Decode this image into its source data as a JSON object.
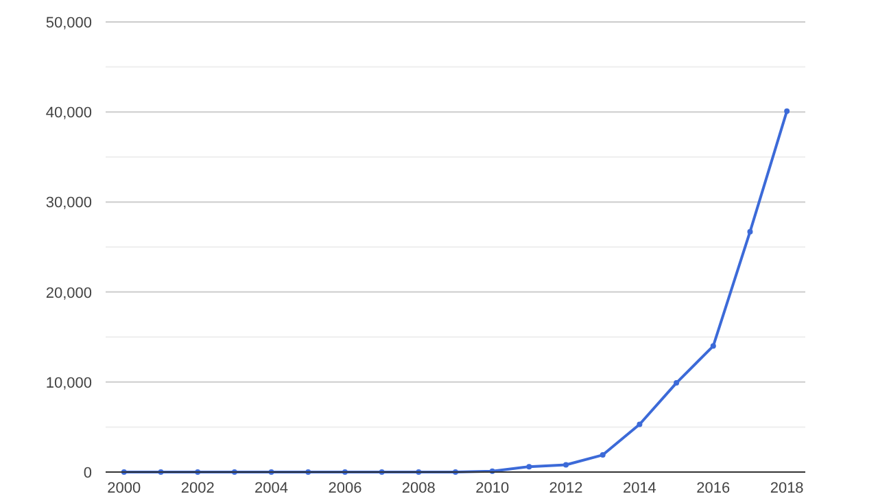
{
  "chart_data": {
    "type": "line",
    "categories": [
      "2000",
      null,
      "2002",
      null,
      "2004",
      null,
      "2006",
      null,
      "2008",
      null,
      "2010",
      null,
      "2012",
      null,
      "2014",
      null,
      "2016",
      null,
      "2018"
    ],
    "series": [
      {
        "color": "#3c6ad8",
        "values": [
          0,
          0,
          0,
          0,
          0,
          0,
          0,
          0,
          0,
          0,
          100,
          600,
          800,
          1900,
          5300,
          9900,
          14000,
          26700,
          40100
        ]
      }
    ],
    "ylim": [
      0,
      50000
    ],
    "yticks": [
      0,
      {
        "value": 5000,
        "label": null
      },
      {
        "value": 10000,
        "label": "10,000"
      },
      {
        "value": 15000,
        "label": null
      },
      {
        "value": 20000,
        "label": "20,000"
      },
      {
        "value": 25000,
        "label": null
      },
      {
        "value": 30000,
        "label": "30,000"
      },
      {
        "value": 35000,
        "label": null
      },
      {
        "value": 40000,
        "label": "40,000"
      },
      {
        "value": 45000,
        "label": null
      },
      {
        "value": 50000,
        "label": "50,000"
      }
    ],
    "grid": true,
    "marker": "circle",
    "line_style": "solid"
  }
}
